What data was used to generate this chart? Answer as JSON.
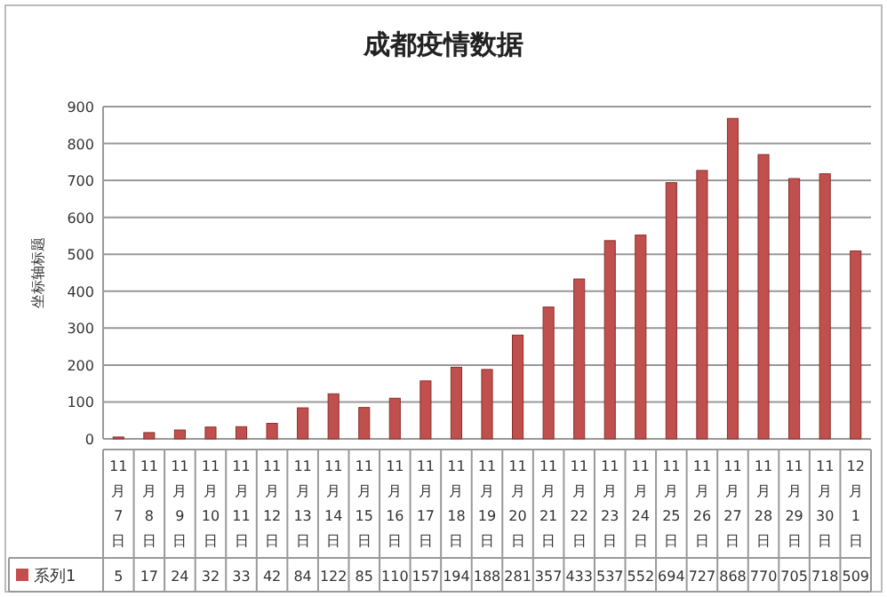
{
  "chart_data": {
    "type": "bar",
    "title": "成都疫情数据",
    "ylabel": "坐标轴标题",
    "categories": [
      "11月7日",
      "11月8日",
      "11月9日",
      "11月10日",
      "11月11日",
      "11月12日",
      "11月13日",
      "11月14日",
      "11月15日",
      "11月16日",
      "11月17日",
      "11月18日",
      "11月19日",
      "11月20日",
      "11月21日",
      "11月22日",
      "11月23日",
      "11月24日",
      "11月25日",
      "11月26日",
      "11月27日",
      "11月28日",
      "11月29日",
      "11月30日",
      "12月1日"
    ],
    "series": [
      {
        "name": "系列1",
        "color": "#c0504d",
        "values": [
          5,
          17,
          24,
          32,
          33,
          42,
          84,
          122,
          85,
          110,
          157,
          194,
          188,
          281,
          357,
          433,
          537,
          552,
          694,
          727,
          868,
          770,
          705,
          718,
          509
        ]
      }
    ],
    "ylim": [
      0,
      900
    ],
    "yticks": [
      0,
      100,
      200,
      300,
      400,
      500,
      600,
      700,
      800,
      900
    ],
    "grid": "y",
    "data_labels": true,
    "legend": "bottom"
  }
}
